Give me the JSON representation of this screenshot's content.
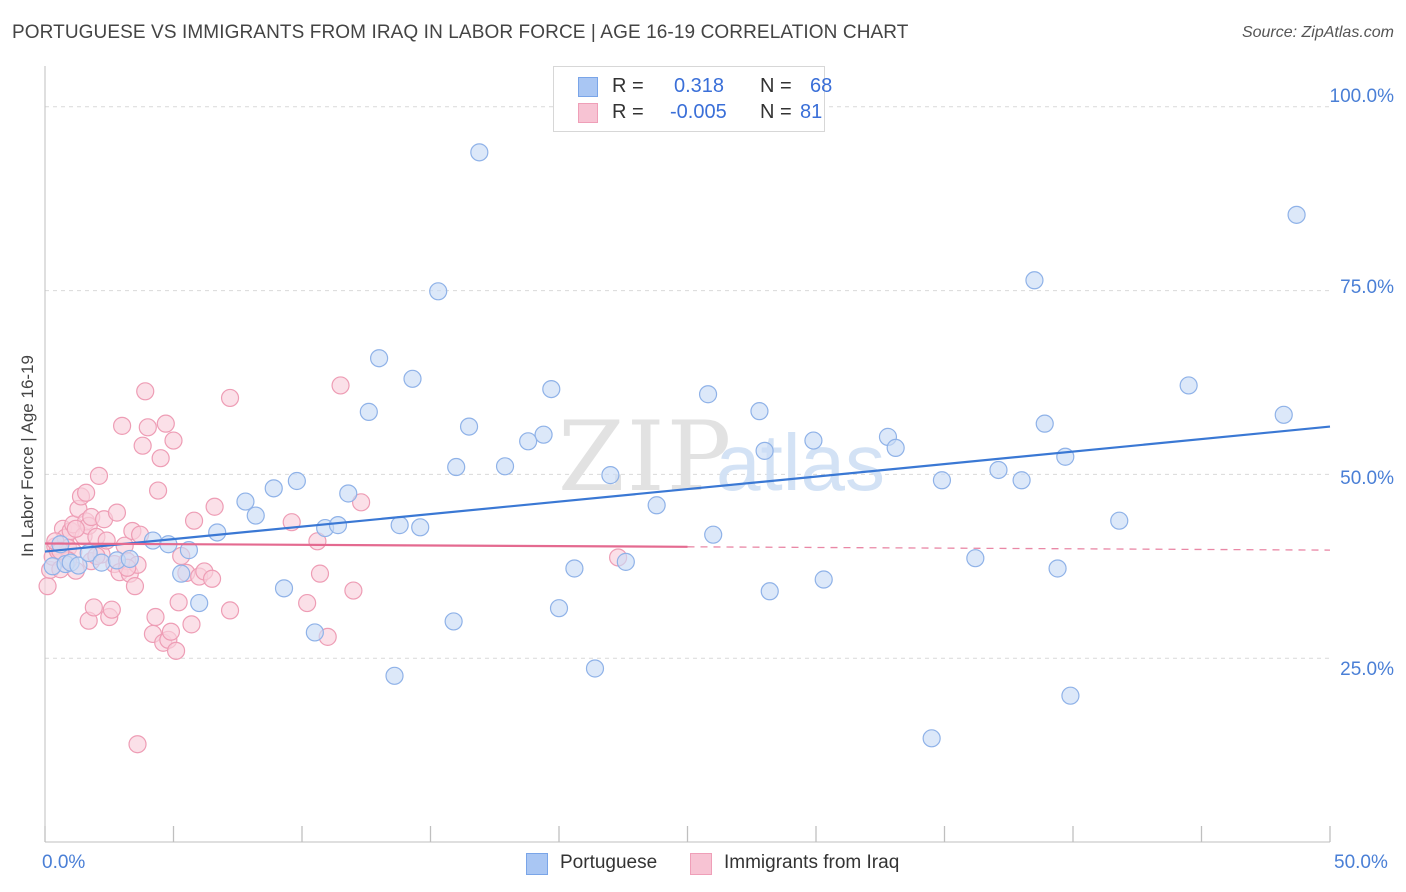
{
  "title": "PORTUGUESE VS IMMIGRANTS FROM IRAQ IN LABOR FORCE | AGE 16-19 CORRELATION CHART",
  "source": "Source: ZipAtlas.com",
  "watermark": {
    "zip": "ZIP",
    "atlas": "atlas"
  },
  "legend": {
    "r_label": "R =",
    "n_label": "N =",
    "rows": [
      {
        "r": "0.318",
        "n": "68",
        "swatch": "#a9c6f3",
        "border": "#7aa5e8"
      },
      {
        "r": "-0.005",
        "n": "81",
        "swatch": "#f7c3d3",
        "border": "#ef9fb8"
      }
    ]
  },
  "colors": {
    "blue_fill": "#c9dbf6",
    "blue_stroke": "#8fb2e8",
    "blue_line": "#3a78d4",
    "pink_fill": "#f9d0dc",
    "pink_stroke": "#ee9db5",
    "pink_line": "#e46a90",
    "grid": "#d9d9d9",
    "axis": "#bfbfbf",
    "tick_text": "#4a7fd6"
  },
  "chart_data": {
    "type": "scatter",
    "xlabel": "",
    "ylabel": "In Labor Force | Age 16-19",
    "xlim": [
      0,
      50
    ],
    "ylim": [
      0,
      105
    ],
    "x_tick_labels": [
      {
        "v": 0,
        "label": "0.0%"
      },
      {
        "v": 50,
        "label": "50.0%"
      }
    ],
    "y_tick_labels": [
      {
        "v": 25,
        "label": "25.0%"
      },
      {
        "v": 50,
        "label": "50.0%"
      },
      {
        "v": 75,
        "label": "75.0%"
      },
      {
        "v": 100,
        "label": "100.0%"
      }
    ],
    "series": [
      {
        "name": "Portuguese",
        "trend": {
          "x": [
            0,
            50
          ],
          "y": [
            39.5,
            56.5
          ],
          "dashed_from": null
        },
        "points": [
          [
            0.3,
            37.5
          ],
          [
            0.6,
            40.5
          ],
          [
            0.8,
            37.8
          ],
          [
            1.0,
            38.0
          ],
          [
            1.3,
            37.6
          ],
          [
            1.7,
            39.3
          ],
          [
            2.2,
            38.0
          ],
          [
            2.8,
            38.3
          ],
          [
            3.3,
            38.5
          ],
          [
            4.2,
            41.0
          ],
          [
            4.8,
            40.5
          ],
          [
            5.3,
            36.5
          ],
          [
            5.6,
            39.7
          ],
          [
            6.0,
            32.5
          ],
          [
            6.7,
            42.1
          ],
          [
            7.8,
            46.3
          ],
          [
            8.2,
            44.4
          ],
          [
            8.9,
            48.1
          ],
          [
            9.3,
            34.5
          ],
          [
            9.8,
            49.1
          ],
          [
            10.5,
            28.5
          ],
          [
            10.9,
            42.7
          ],
          [
            11.4,
            43.1
          ],
          [
            11.8,
            47.4
          ],
          [
            12.6,
            58.5
          ],
          [
            13.0,
            65.8
          ],
          [
            13.6,
            22.6
          ],
          [
            13.8,
            43.1
          ],
          [
            14.3,
            63.0
          ],
          [
            14.6,
            42.8
          ],
          [
            15.3,
            74.9
          ],
          [
            15.9,
            30.0
          ],
          [
            16.0,
            51.0
          ],
          [
            16.5,
            56.5
          ],
          [
            16.9,
            93.8
          ],
          [
            17.9,
            51.1
          ],
          [
            18.8,
            54.5
          ],
          [
            19.4,
            55.4
          ],
          [
            19.7,
            61.6
          ],
          [
            20.0,
            31.8
          ],
          [
            20.6,
            37.2
          ],
          [
            21.4,
            23.6
          ],
          [
            22.0,
            49.9
          ],
          [
            22.6,
            38.1
          ],
          [
            23.8,
            45.8
          ],
          [
            25.8,
            60.9
          ],
          [
            26.0,
            41.8
          ],
          [
            27.8,
            58.6
          ],
          [
            28.0,
            53.2
          ],
          [
            28.2,
            34.1
          ],
          [
            29.9,
            54.6
          ],
          [
            30.3,
            35.7
          ],
          [
            32.8,
            55.1
          ],
          [
            33.1,
            53.6
          ],
          [
            34.9,
            49.2
          ],
          [
            36.2,
            38.6
          ],
          [
            37.1,
            50.6
          ],
          [
            38.0,
            49.2
          ],
          [
            38.9,
            56.9
          ],
          [
            39.4,
            37.2
          ],
          [
            39.7,
            52.4
          ],
          [
            38.5,
            76.4
          ],
          [
            39.9,
            19.9
          ],
          [
            41.8,
            43.7
          ],
          [
            44.5,
            62.1
          ],
          [
            48.7,
            85.3
          ],
          [
            48.2,
            58.1
          ],
          [
            34.5,
            14.1
          ]
        ]
      },
      {
        "name": "Immigrants from Iraq",
        "trend": {
          "x": [
            0,
            50
          ],
          "y": [
            40.6,
            39.7
          ],
          "dashed_from": 25.0
        },
        "points": [
          [
            0.1,
            34.8
          ],
          [
            0.2,
            37.0
          ],
          [
            0.3,
            38.8
          ],
          [
            0.4,
            40.2
          ],
          [
            0.5,
            39.6
          ],
          [
            0.6,
            37.1
          ],
          [
            0.7,
            42.6
          ],
          [
            0.8,
            41.4
          ],
          [
            0.9,
            40.0
          ],
          [
            1.0,
            42.3
          ],
          [
            1.1,
            43.2
          ],
          [
            1.2,
            36.9
          ],
          [
            1.3,
            45.3
          ],
          [
            1.4,
            47.0
          ],
          [
            1.5,
            41.6
          ],
          [
            1.6,
            43.6
          ],
          [
            1.7,
            43.0
          ],
          [
            1.8,
            44.2
          ],
          [
            1.6,
            47.5
          ],
          [
            1.7,
            30.1
          ],
          [
            1.8,
            38.2
          ],
          [
            1.9,
            31.9
          ],
          [
            2.0,
            41.5
          ],
          [
            2.1,
            49.8
          ],
          [
            2.2,
            39.1
          ],
          [
            2.3,
            43.9
          ],
          [
            2.5,
            30.6
          ],
          [
            2.6,
            31.6
          ],
          [
            2.7,
            37.8
          ],
          [
            2.8,
            44.8
          ],
          [
            2.9,
            36.7
          ],
          [
            3.0,
            56.6
          ],
          [
            3.1,
            40.3
          ],
          [
            3.2,
            38.2
          ],
          [
            3.3,
            36.5
          ],
          [
            3.4,
            42.3
          ],
          [
            3.5,
            34.8
          ],
          [
            3.6,
            37.7
          ],
          [
            3.7,
            41.8
          ],
          [
            3.8,
            53.9
          ],
          [
            3.9,
            61.3
          ],
          [
            4.0,
            56.4
          ],
          [
            4.2,
            28.3
          ],
          [
            4.3,
            30.6
          ],
          [
            4.4,
            47.8
          ],
          [
            4.5,
            52.2
          ],
          [
            4.6,
            27.1
          ],
          [
            4.7,
            56.9
          ],
          [
            4.8,
            27.5
          ],
          [
            4.9,
            28.6
          ],
          [
            5.0,
            54.6
          ],
          [
            5.1,
            26.0
          ],
          [
            5.2,
            32.6
          ],
          [
            5.3,
            38.9
          ],
          [
            5.5,
            36.6
          ],
          [
            5.8,
            43.7
          ],
          [
            5.7,
            29.6
          ],
          [
            6.0,
            36.1
          ],
          [
            6.2,
            36.8
          ],
          [
            6.5,
            35.8
          ],
          [
            6.6,
            45.6
          ],
          [
            7.2,
            31.5
          ],
          [
            7.2,
            60.4
          ],
          [
            9.6,
            43.5
          ],
          [
            10.2,
            32.5
          ],
          [
            10.6,
            40.9
          ],
          [
            10.7,
            36.5
          ],
          [
            11.0,
            27.9
          ],
          [
            11.5,
            62.1
          ],
          [
            12.0,
            34.2
          ],
          [
            12.3,
            46.2
          ],
          [
            22.3,
            38.7
          ],
          [
            3.6,
            13.3
          ],
          [
            2.4,
            41.0
          ],
          [
            1.1,
            39.5
          ],
          [
            0.4,
            40.9
          ],
          [
            0.9,
            38.3
          ],
          [
            3.2,
            37.3
          ],
          [
            2.0,
            38.9
          ],
          [
            0.6,
            39.6
          ],
          [
            1.2,
            42.6
          ]
        ]
      }
    ]
  }
}
